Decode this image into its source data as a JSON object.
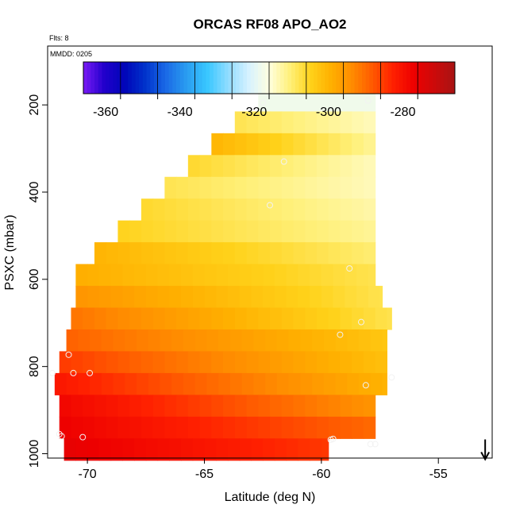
{
  "title": "ORCAS RF08 APO_AO2",
  "flights_label": "Flts: 8",
  "date_label": "MMDD: 0205",
  "chart_data": {
    "type": "heatmap",
    "title": "ORCAS RF08 APO_AO2",
    "xlabel": "Latitude (deg N)",
    "ylabel": "PSXC (mbar)",
    "xlim": [
      -71.7,
      -52.7
    ],
    "ylim": [
      1010,
      65
    ],
    "x_ticks": [
      -70,
      -65,
      -60,
      -55
    ],
    "x_tick_labels": [
      "-70",
      "-65",
      "-60",
      "-55"
    ],
    "y_ticks": [
      200,
      400,
      600,
      800,
      1000
    ],
    "y_tick_labels": [
      "200",
      "400",
      "600",
      "800",
      "1000"
    ],
    "colorbar": {
      "range": [
        -366,
        -266
      ],
      "ticks": [
        -360,
        -340,
        -320,
        -300,
        -280
      ],
      "tick_labels": [
        "-360",
        "-340",
        "-320",
        "-300",
        "-280"
      ],
      "colors": [
        "#7a1bf5",
        "#2200cc",
        "#0005b8",
        "#0033cc",
        "#1a6ae6",
        "#2a9cf0",
        "#38c7ff",
        "#8fdcff",
        "#d6f2ff",
        "#ffffe0",
        "#fff07a",
        "#ffd21a",
        "#ffb000",
        "#ff8c00",
        "#ff5a00",
        "#ff2000",
        "#ee0000",
        "#cc0a0a",
        "#a81414"
      ]
    },
    "bands": [
      {
        "p": 190,
        "lat_min": -62.7,
        "lat_max": -57.7,
        "apo_left": -318,
        "apo_right": -318
      },
      {
        "p": 240,
        "lat_min": -63.7,
        "lat_max": -57.7,
        "apo_left": -308,
        "apo_right": -314
      },
      {
        "p": 290,
        "lat_min": -64.7,
        "lat_max": -57.7,
        "apo_left": -300,
        "apo_right": -312
      },
      {
        "p": 340,
        "lat_min": -65.7,
        "lat_max": -57.7,
        "apo_left": -306,
        "apo_right": -314
      },
      {
        "p": 390,
        "lat_min": -66.7,
        "lat_max": -57.7,
        "apo_left": -308,
        "apo_right": -314
      },
      {
        "p": 440,
        "lat_min": -67.7,
        "lat_max": -57.7,
        "apo_left": -306,
        "apo_right": -313
      },
      {
        "p": 490,
        "lat_min": -68.7,
        "lat_max": -57.7,
        "apo_left": -305,
        "apo_right": -312
      },
      {
        "p": 540,
        "lat_min": -69.7,
        "lat_max": -57.7,
        "apo_left": -300,
        "apo_right": -310
      },
      {
        "p": 590,
        "lat_min": -70.5,
        "lat_max": -57.7,
        "apo_left": -299,
        "apo_right": -308
      },
      {
        "p": 640,
        "lat_min": -70.5,
        "lat_max": -57.4,
        "apo_left": -295,
        "apo_right": -308
      },
      {
        "p": 690,
        "lat_min": -70.7,
        "lat_max": -57.0,
        "apo_left": -291,
        "apo_right": -308
      },
      {
        "p": 740,
        "lat_min": -70.9,
        "lat_max": -57.2,
        "apo_left": -289,
        "apo_right": -303
      },
      {
        "p": 790,
        "lat_min": -71.2,
        "lat_max": -57.2,
        "apo_left": -285,
        "apo_right": -302
      },
      {
        "p": 840,
        "lat_min": -71.4,
        "lat_max": -57.2,
        "apo_left": -281,
        "apo_right": -300
      },
      {
        "p": 890,
        "lat_min": -71.2,
        "lat_max": -57.7,
        "apo_left": -278,
        "apo_right": -295
      },
      {
        "p": 940,
        "lat_min": -71.2,
        "lat_max": -57.7,
        "apo_left": -277,
        "apo_right": -290
      },
      {
        "p": 990,
        "lat_min": -71.0,
        "lat_max": -59.7,
        "apo_left": -276,
        "apo_right": -285
      }
    ],
    "sample_points": [
      {
        "lat": -62.5,
        "p": 195
      },
      {
        "lat": -58.0,
        "p": 190
      },
      {
        "lat": -61.6,
        "p": 330
      },
      {
        "lat": -62.2,
        "p": 430
      },
      {
        "lat": -58.8,
        "p": 575
      },
      {
        "lat": -58.3,
        "p": 698
      },
      {
        "lat": -59.2,
        "p": 727
      },
      {
        "lat": -70.8,
        "p": 773
      },
      {
        "lat": -71.5,
        "p": 815
      },
      {
        "lat": -70.6,
        "p": 815
      },
      {
        "lat": -69.9,
        "p": 815
      },
      {
        "lat": -57.0,
        "p": 825
      },
      {
        "lat": -58.1,
        "p": 843
      },
      {
        "lat": -71.2,
        "p": 955
      },
      {
        "lat": -71.1,
        "p": 960
      },
      {
        "lat": -70.2,
        "p": 962
      },
      {
        "lat": -59.6,
        "p": 968
      },
      {
        "lat": -59.5,
        "p": 966
      },
      {
        "lat": -57.9,
        "p": 978
      },
      {
        "lat": -57.7,
        "p": 978
      }
    ],
    "arrow_marker": {
      "lat": -53.0,
      "p": 1000
    }
  }
}
